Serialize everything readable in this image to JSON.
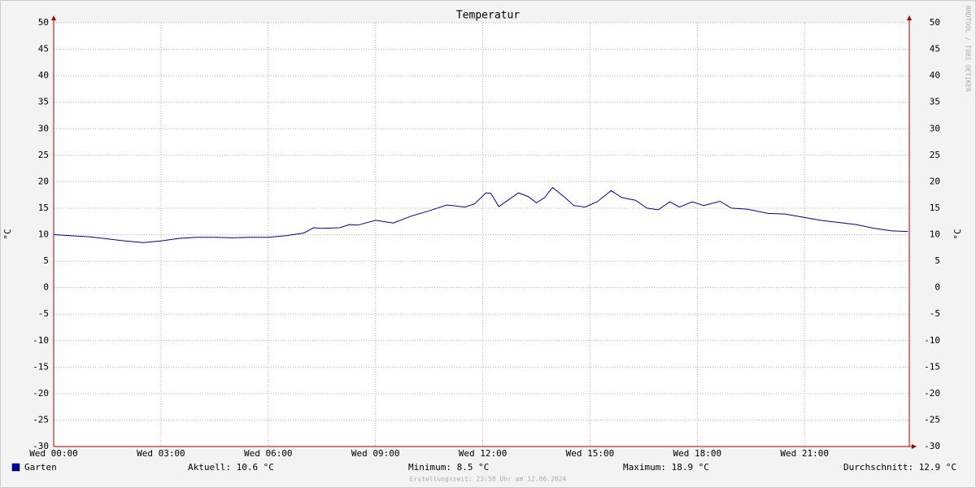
{
  "chart_data": {
    "type": "line",
    "title": "Temperatur",
    "y_label": "°C",
    "x": [
      0,
      1,
      2,
      2.5,
      3,
      3.5,
      4,
      4.5,
      5,
      5.5,
      6,
      6.5,
      7,
      7.27,
      7.5,
      8,
      8.27,
      8.5,
      9,
      9.5,
      10,
      10.5,
      11,
      11.5,
      11.77,
      12.09,
      12.23,
      12.45,
      12.77,
      13,
      13.27,
      13.5,
      13.73,
      13.95,
      14.3,
      14.55,
      14.86,
      15.2,
      15.59,
      15.89,
      16.27,
      16.59,
      16.91,
      17.23,
      17.5,
      17.86,
      18.18,
      18.64,
      18.95,
      19.41,
      19.98,
      20.45,
      20.95,
      21.45,
      21.95,
      22.45,
      22.95,
      23.45,
      23.89
    ],
    "series": [
      {
        "name": "Garten",
        "color": "#0000a0",
        "values": [
          10.0,
          9.6,
          8.8,
          8.5,
          8.8,
          9.3,
          9.5,
          9.5,
          9.4,
          9.5,
          9.5,
          9.8,
          10.3,
          11.3,
          11.2,
          11.3,
          11.9,
          11.8,
          12.7,
          12.2,
          13.5,
          14.5,
          15.6,
          15.2,
          15.8,
          17.9,
          17.8,
          15.3,
          16.8,
          17.9,
          17.2,
          16.0,
          17.0,
          18.9,
          17.0,
          15.5,
          15.2,
          16.2,
          18.3,
          17.0,
          16.5,
          15.0,
          14.7,
          16.2,
          15.2,
          16.2,
          15.5,
          16.3,
          15.0,
          14.8,
          14.0,
          13.9,
          13.3,
          12.7,
          12.3,
          11.9,
          11.2,
          10.7,
          10.6
        ]
      }
    ],
    "xlim": [
      0,
      23.93
    ],
    "xticks": [
      {
        "value": 0,
        "label": "Wed 00:00"
      },
      {
        "value": 3,
        "label": "Wed 03:00"
      },
      {
        "value": 6,
        "label": "Wed 06:00"
      },
      {
        "value": 9,
        "label": "Wed 09:00"
      },
      {
        "value": 12,
        "label": "Wed 12:00"
      },
      {
        "value": 15,
        "label": "Wed 15:00"
      },
      {
        "value": 18,
        "label": "Wed 18:00"
      },
      {
        "value": 21,
        "label": "Wed 21:00"
      }
    ],
    "ylim": [
      -30,
      50
    ],
    "yticks": [
      -30,
      -25,
      -20,
      -15,
      -10,
      -5,
      0,
      5,
      10,
      15,
      20,
      25,
      30,
      35,
      40,
      45,
      50
    ],
    "grid": true,
    "stats": [
      {
        "label": "Aktuell:",
        "value": 10.6,
        "unit": "°C"
      },
      {
        "label": "Minimum:",
        "value": 8.5,
        "unit": "°C"
      },
      {
        "label": "Maximum:",
        "value": 18.9,
        "unit": "°C"
      },
      {
        "label": "Durchschnitt:",
        "value": 12.9,
        "unit": "°C"
      }
    ],
    "footer": "Erstellungszeit: 23:58 Uhr am 12.06.2024",
    "watermark": "RRDTOOL / TOBI OETIKER"
  }
}
